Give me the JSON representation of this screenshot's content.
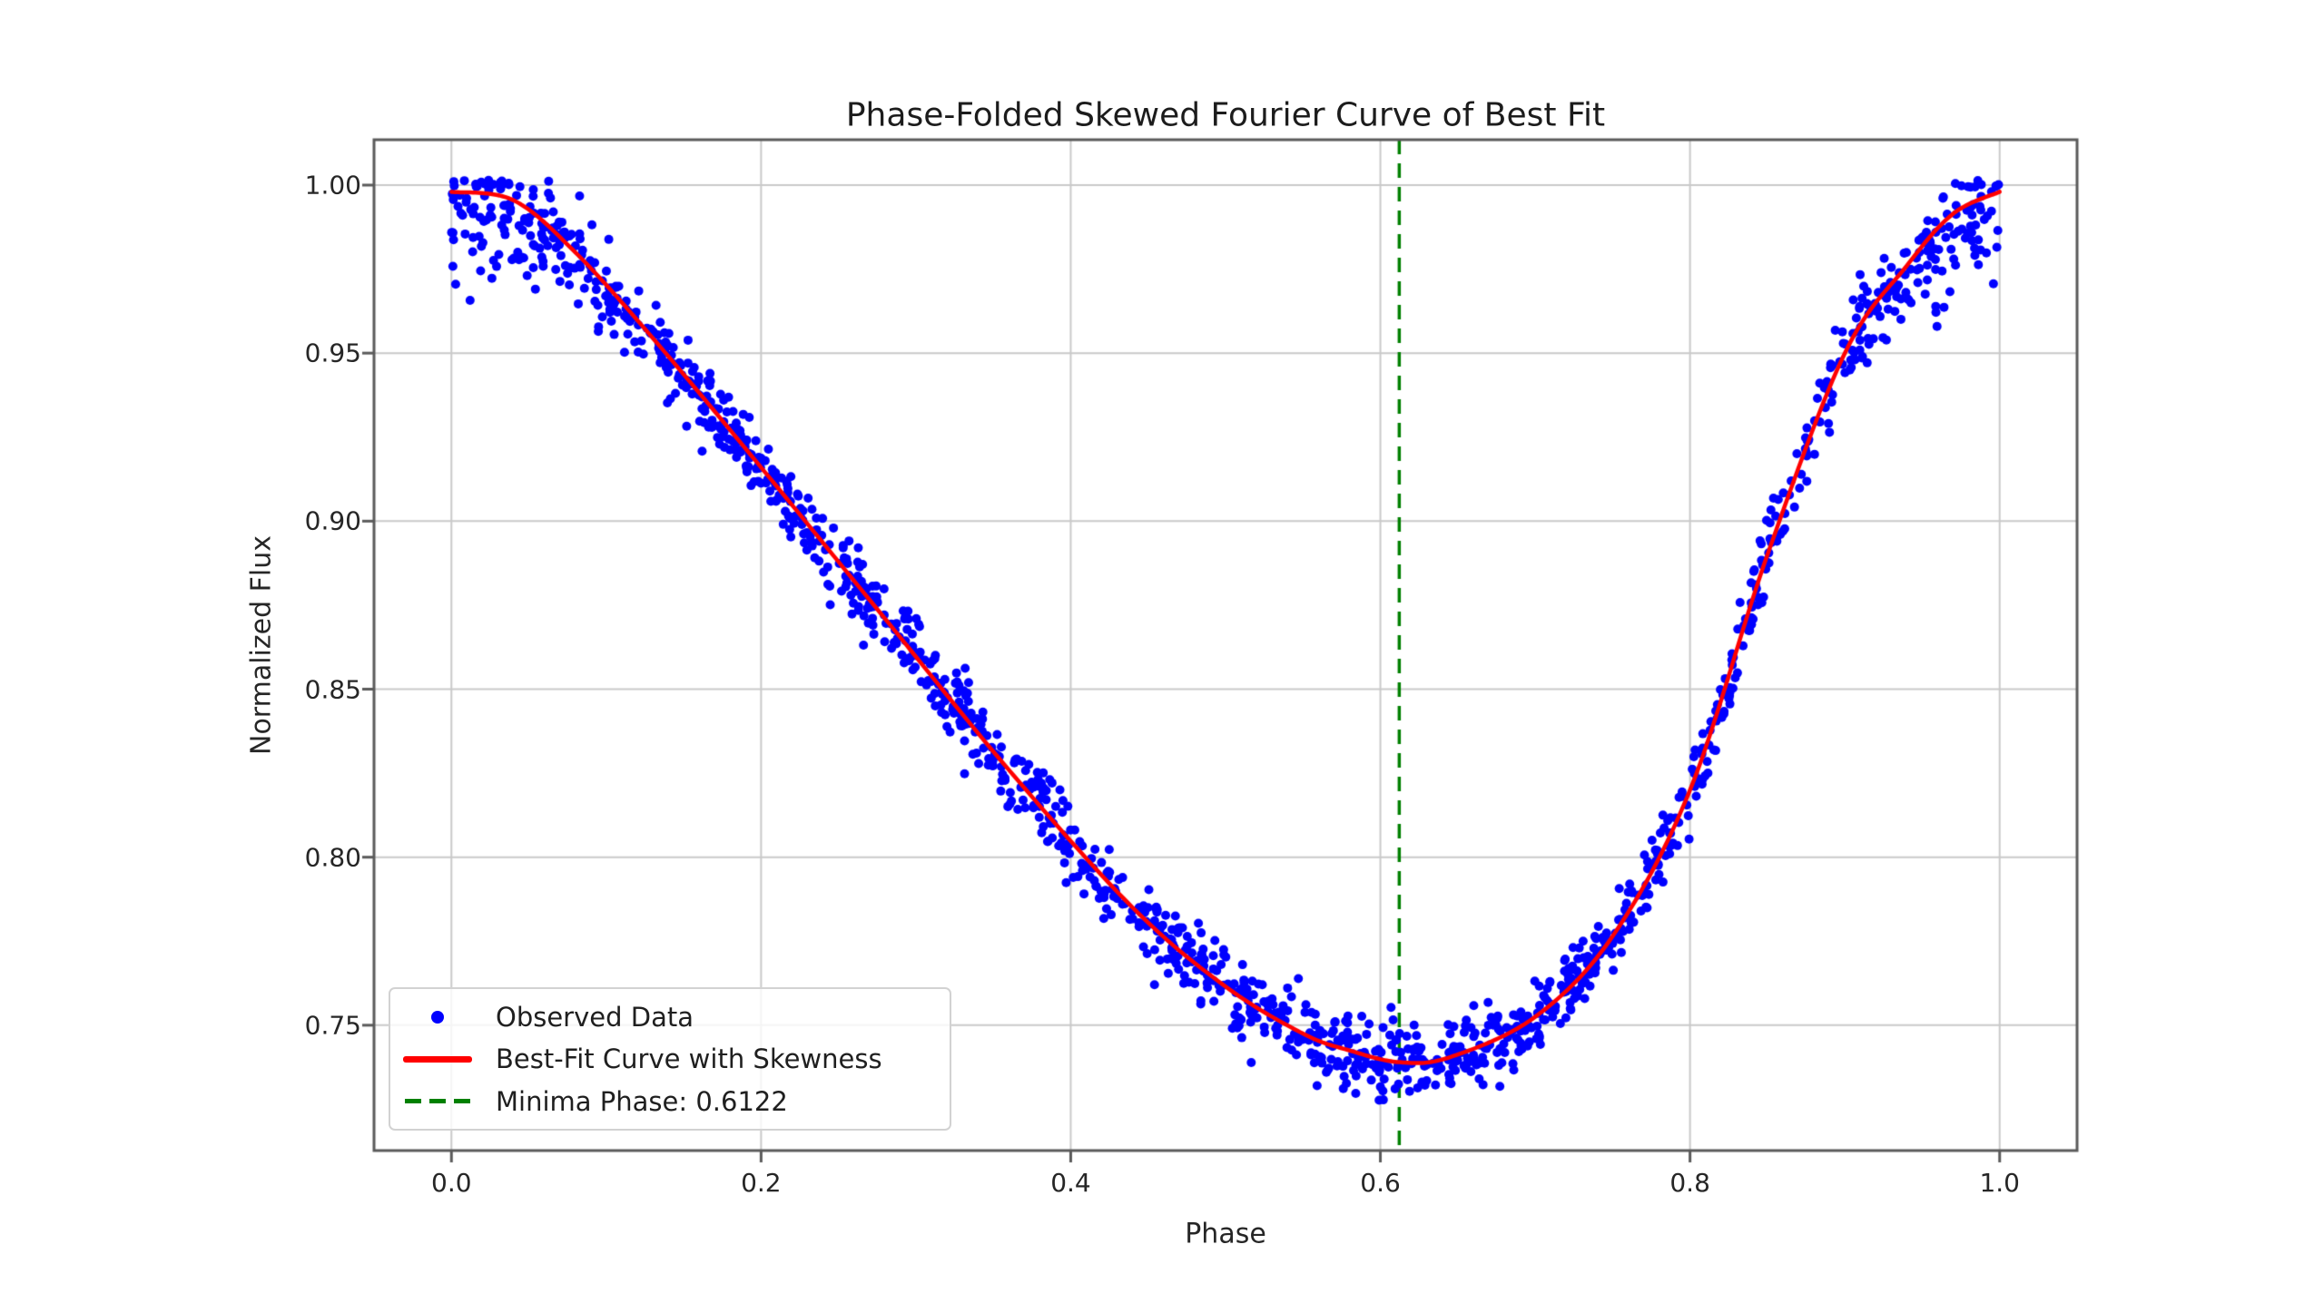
{
  "style": {
    "background": "#ffffff",
    "grid_color": "#c9c9c9",
    "spine_color": "#5a5a5a",
    "tick_color": "#5a5a5a",
    "text_color": "#262626",
    "legend_border_color": "#d2d2d2",
    "legend_background": "rgba(255,255,255,0.8)"
  },
  "chart_data": {
    "type": "scatter",
    "title": "Phase-Folded Skewed Fourier Curve of Best Fit",
    "xlabel": "Phase",
    "ylabel": "Normalized Flux",
    "xlim": [
      -0.05,
      1.05
    ],
    "ylim": [
      0.7127,
      1.0135
    ],
    "grid": true,
    "legend_location": "lower left",
    "x_ticks": {
      "values": [
        0.0,
        0.2,
        0.4,
        0.6,
        0.8,
        1.0
      ],
      "labels": [
        "0.0",
        "0.2",
        "0.4",
        "0.6",
        "0.8",
        "1.0"
      ]
    },
    "y_ticks": {
      "values": [
        0.75,
        0.8,
        0.85,
        0.9,
        0.95,
        1.0
      ],
      "labels": [
        "0.75",
        "0.80",
        "0.85",
        "0.90",
        "0.95",
        "1.00"
      ]
    },
    "minimum": {
      "phase": 0.6122,
      "flux": 0.739
    },
    "series": [
      {
        "name": "Observed Data",
        "type": "scatter",
        "color": "#0000ff",
        "marker": "point",
        "marker_radius_px": 5,
        "model": {
          "count": 1500,
          "seed": 987321,
          "base_sigma": 0.0055,
          "max_region_threshold": 0.952,
          "max_region_width": 0.046,
          "max_region_extra_sigma_factor": 0.8,
          "max_region_down_bias": 0.009,
          "flux_cap": 1.0015
        }
      },
      {
        "name": "Best-Fit Curve with Skewness",
        "type": "line",
        "color": "#ff0000",
        "line_width": 4.5,
        "control_points": [
          [
            0.0,
            0.998
          ],
          [
            0.04,
            0.9955
          ],
          [
            0.08,
            0.98
          ],
          [
            0.13,
            0.9545
          ],
          [
            0.2,
            0.916
          ],
          [
            0.28,
            0.871
          ],
          [
            0.36,
            0.826
          ],
          [
            0.44,
            0.785
          ],
          [
            0.5,
            0.7615
          ],
          [
            0.55,
            0.7475
          ],
          [
            0.58,
            0.7425
          ],
          [
            0.6122,
            0.739
          ],
          [
            0.645,
            0.7405
          ],
          [
            0.7,
            0.7525
          ],
          [
            0.75,
            0.7765
          ],
          [
            0.8,
            0.82
          ],
          [
            0.85,
            0.89
          ],
          [
            0.9,
            0.95
          ],
          [
            0.94,
            0.976
          ],
          [
            0.97,
            0.9915
          ],
          [
            1.0,
            0.998
          ]
        ]
      },
      {
        "name": "Minima Phase: 0.6122",
        "type": "vline",
        "x": 0.6122,
        "color": "#008000",
        "linestyle": "dashed",
        "line_width": 3.5,
        "dash_pattern": [
          16,
          10
        ]
      }
    ],
    "legend_entries": [
      {
        "label": "Observed Data",
        "marker": "dot",
        "color": "#0000ff"
      },
      {
        "label": "Best-Fit Curve with Skewness",
        "marker": "line",
        "color": "#ff0000"
      },
      {
        "label": "Minima Phase: 0.6122",
        "marker": "dashed-line",
        "color": "#008000"
      }
    ]
  }
}
